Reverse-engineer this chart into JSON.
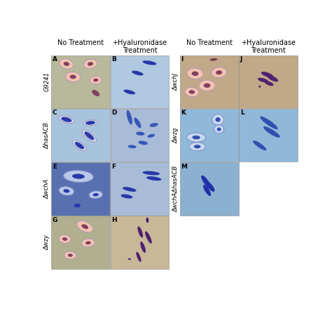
{
  "figsize": [
    4.74,
    4.5
  ],
  "dpi": 100,
  "bg_colors": {
    "A": "#b8b89a",
    "B": "#b0c8e0",
    "C": "#a8c4dc",
    "D": "#a8bcd8",
    "E": "#5870b0",
    "F": "#a8bcd8",
    "G": "#b0b090",
    "H": "#c8b898",
    "I": "#c0a888",
    "J": "#c0a888",
    "K": "#90b8d8",
    "L": "#90b8d8",
    "M": "#8cb0d0"
  },
  "col_headers_left": [
    "No Treatment",
    "+Hyaluronidase\nTreatment"
  ],
  "col_headers_right": [
    "No Treatment",
    "+Hyaluronidase\nTreatment"
  ],
  "row_labels_left": [
    "G9241",
    "ΔhasACB",
    "ΔwchA",
    "Δwzy"
  ],
  "row_labels_right": [
    "ΔwchJ",
    "Δwzg",
    "ΔwchAΔhasACB"
  ],
  "pink_outer": "#f0c0a8",
  "pink_inner": "#8040608",
  "rod_dark_blue": "#2838a8",
  "rod_purple": "#502878",
  "capsule_edge": "#c090b0"
}
